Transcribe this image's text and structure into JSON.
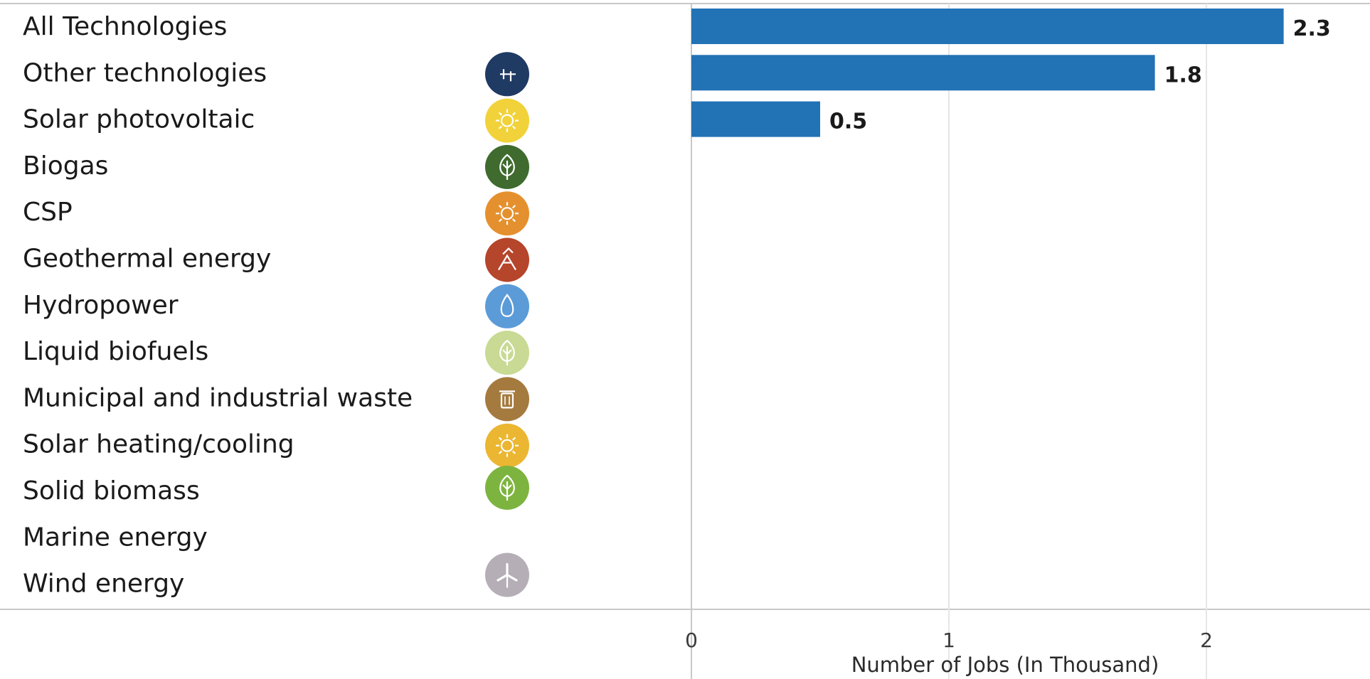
{
  "chart_data": {
    "type": "bar",
    "orientation": "horizontal",
    "categories": [
      "All Technologies",
      "Other technologies",
      "Solar photovoltaic",
      "Biogas",
      "CSP",
      "Geothermal energy",
      "Hydropower",
      "Liquid biofuels",
      "Municipal and industrial waste",
      "Solar heating/cooling",
      "Solid biomass",
      "Marine energy",
      "Wind energy"
    ],
    "values": [
      2.3,
      1.8,
      0.5,
      null,
      null,
      null,
      null,
      null,
      null,
      null,
      null,
      null,
      null
    ],
    "value_labels": [
      "2.3",
      "1.8",
      "0.5",
      "",
      "",
      "",
      "",
      "",
      "",
      "",
      "",
      "",
      ""
    ],
    "icons": [
      null,
      {
        "name": "other-technologies-icon",
        "color": "#1f3a63"
      },
      {
        "name": "sun-icon",
        "color": "#f2d23a"
      },
      {
        "name": "leaf-icon",
        "color": "#3f6b2e"
      },
      {
        "name": "sun-icon",
        "color": "#e5902e"
      },
      {
        "name": "geothermal-icon",
        "color": "#b5452b"
      },
      {
        "name": "water-drop-icon",
        "color": "#5b9bd8"
      },
      {
        "name": "leaf-icon",
        "color": "#c8da93"
      },
      {
        "name": "trash-bin-icon",
        "color": "#a57a3e"
      },
      {
        "name": "sun-icon",
        "color": "#ebb631"
      },
      {
        "name": "leaf-icon",
        "color": "#7db43f"
      },
      null,
      {
        "name": "wind-turbine-icon",
        "color": "#b5aeb6"
      }
    ],
    "xlabel": "Number of Jobs (In Thousand)",
    "ylabel": "",
    "xlim": [
      0,
      2.6
    ],
    "xticks": [
      0,
      1,
      2
    ],
    "xtick_labels": [
      "0",
      "1",
      "2"
    ],
    "bar_color": "#2272b6",
    "grid": true,
    "legend": "none"
  }
}
